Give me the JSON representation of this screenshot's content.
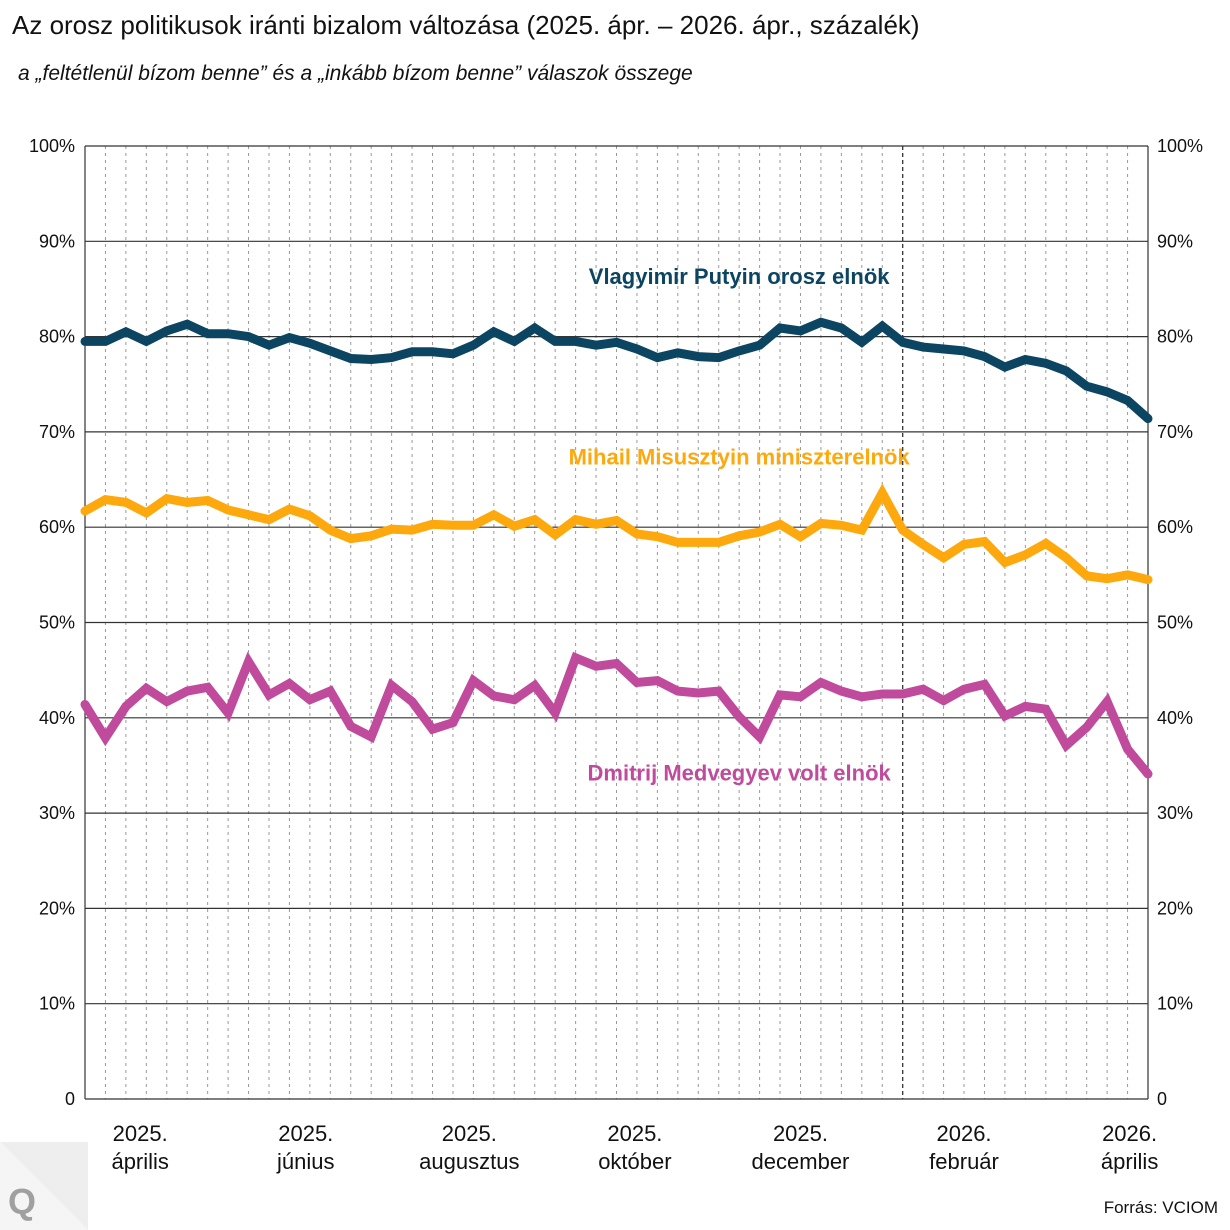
{
  "title": "Az orosz politikusok iránti bizalom változása (2025. ápr. – 2026. ápr., százalék)",
  "subtitle": "a „feltétlenül bízom benne” és a „inkább bízom benne” válaszok összege",
  "source": "Forrás: VCIOM",
  "logo_text": "Q",
  "chart_data": {
    "type": "line",
    "title": "Az orosz politikusok iránti bizalom változása (2025. ápr. – 2026. ápr., százalék)",
    "ylabel": "százalék",
    "ylim": [
      0,
      100
    ],
    "y_ticks": [
      "0",
      "10%",
      "20%",
      "30%",
      "40%",
      "50%",
      "60%",
      "70%",
      "80%",
      "90%",
      "100%"
    ],
    "grid": true,
    "x_points": 53,
    "x_unit": "week",
    "year_boundary_index": 40,
    "x_labels": [
      {
        "index": 2.7,
        "year": "2025.",
        "month": "április"
      },
      {
        "index": 10.8,
        "year": "2025.",
        "month": "június"
      },
      {
        "index": 18.8,
        "year": "2025.",
        "month": "augusztus"
      },
      {
        "index": 26.9,
        "year": "2025.",
        "month": "október"
      },
      {
        "index": 35.0,
        "year": "2025.",
        "month": "december"
      },
      {
        "index": 43.0,
        "year": "2026.",
        "month": "február"
      },
      {
        "index": 51.1,
        "year": "2026.",
        "month": "április"
      }
    ],
    "series": [
      {
        "name": "Vlagyimir Putyin orosz elnök",
        "color": "#0b4562",
        "label_index": 32,
        "label_value": 85.5,
        "values": [
          79.5,
          79.5,
          80.5,
          79.5,
          80.6,
          81.3,
          80.3,
          80.3,
          80.0,
          79.1,
          79.9,
          79.3,
          78.5,
          77.7,
          77.6,
          77.8,
          78.4,
          78.4,
          78.2,
          79.1,
          80.5,
          79.5,
          80.9,
          79.5,
          79.5,
          79.1,
          79.4,
          78.7,
          77.8,
          78.3,
          77.9,
          77.8,
          78.5,
          79.1,
          80.9,
          80.6,
          81.5,
          80.9,
          79.4,
          81.1,
          79.4,
          78.9,
          78.7,
          78.5,
          77.9,
          76.8,
          77.6,
          77.2,
          76.4,
          74.8,
          74.2,
          73.3,
          71.4
        ]
      },
      {
        "name": "Mihail Misusztyin miniszterelnök",
        "color": "#fda80d",
        "label_index": 32,
        "label_value": 66.6,
        "values": [
          61.7,
          62.9,
          62.6,
          61.5,
          63.0,
          62.6,
          62.8,
          61.8,
          61.3,
          60.8,
          61.9,
          61.2,
          59.7,
          58.8,
          59.1,
          59.8,
          59.7,
          60.3,
          60.2,
          60.2,
          61.3,
          60.1,
          60.8,
          59.2,
          60.8,
          60.3,
          60.7,
          59.3,
          59.0,
          58.4,
          58.4,
          58.4,
          59.1,
          59.5,
          60.3,
          59.0,
          60.4,
          60.2,
          59.7,
          63.6,
          59.7,
          58.2,
          56.8,
          58.2,
          58.5,
          56.3,
          57.1,
          58.3,
          56.8,
          54.9,
          54.6,
          55.0,
          54.5
        ]
      },
      {
        "name": "Dmitrij Medvegyev volt elnök",
        "color": "#c04a9b",
        "label_index": 32,
        "label_value": 33.4,
        "values": [
          41.4,
          37.9,
          41.2,
          43.1,
          41.7,
          42.8,
          43.2,
          40.5,
          45.9,
          42.4,
          43.6,
          41.9,
          42.8,
          39.1,
          38.0,
          43.4,
          41.7,
          38.8,
          39.5,
          43.9,
          42.3,
          41.9,
          43.4,
          40.5,
          46.3,
          45.4,
          45.7,
          43.7,
          43.9,
          42.8,
          42.6,
          42.8,
          40.1,
          38.0,
          42.4,
          42.2,
          43.7,
          42.8,
          42.2,
          42.5,
          42.5,
          43.0,
          41.8,
          43.0,
          43.5,
          40.2,
          41.2,
          40.9,
          37.1,
          39.0,
          41.7,
          36.7,
          34.1
        ]
      }
    ]
  }
}
